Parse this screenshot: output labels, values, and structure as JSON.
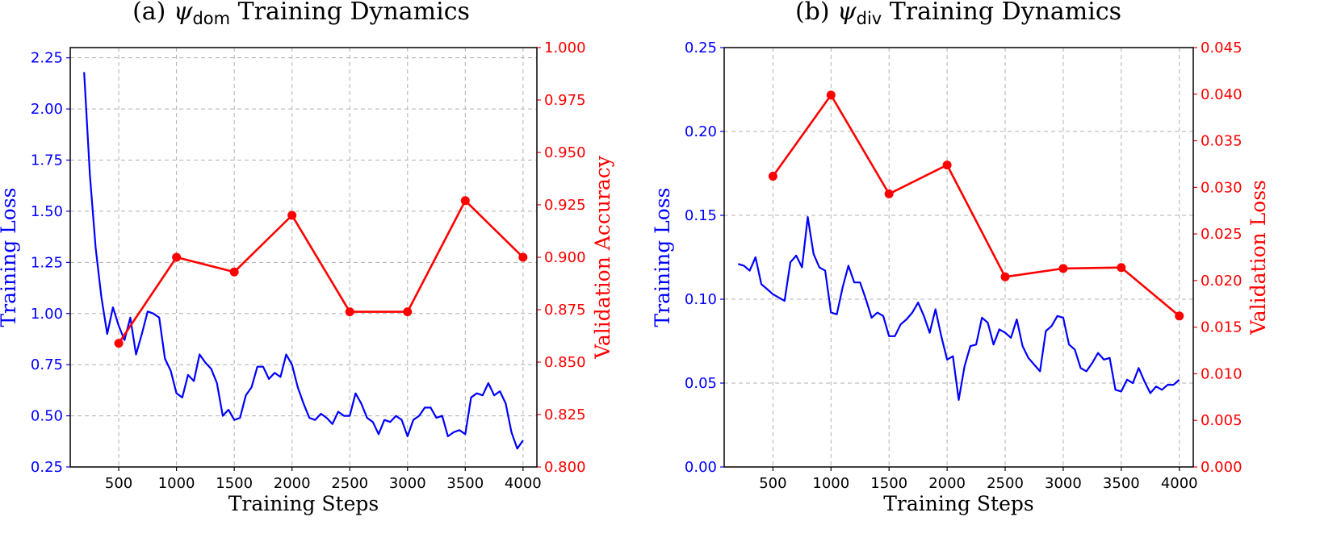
{
  "colors": {
    "train": "#0000ff",
    "val": "#ff0000",
    "grid": "#b0b0b0"
  },
  "chart_data": [
    {
      "type": "line",
      "title": "(a) ψdom Training Dynamics",
      "title_parts": {
        "prefix": "(a) ",
        "symbol": "ψ",
        "subscript": "dom",
        "suffix": " Training Dynamics"
      },
      "xlabel": "Training Steps",
      "ylabel_left": "Training Loss",
      "ylabel_right": "Validation Accuracy",
      "xlim": [
        80,
        4120
      ],
      "ylim_left": [
        0.25,
        2.3
      ],
      "ylim_right": [
        0.8,
        1.0
      ],
      "xticks": [
        "500",
        "1000",
        "1500",
        "2000",
        "2500",
        "3000",
        "3500",
        "4000"
      ],
      "yticks_left": [
        "0.25",
        "0.50",
        "0.75",
        "1.00",
        "1.25",
        "1.50",
        "1.75",
        "2.00",
        "2.25"
      ],
      "yticks_right": [
        "0.800",
        "0.825",
        "0.850",
        "0.875",
        "0.900",
        "0.925",
        "0.950",
        "0.975",
        "1.000"
      ],
      "grid": true,
      "series": [
        {
          "name": "Training Loss",
          "axis": "left",
          "x": [
            200,
            250,
            300,
            350,
            400,
            450,
            500,
            550,
            600,
            650,
            700,
            750,
            800,
            850,
            900,
            950,
            1000,
            1050,
            1100,
            1150,
            1200,
            1250,
            1300,
            1350,
            1400,
            1450,
            1500,
            1550,
            1600,
            1650,
            1700,
            1750,
            1800,
            1850,
            1900,
            1950,
            2000,
            2050,
            2100,
            2150,
            2200,
            2250,
            2300,
            2350,
            2400,
            2450,
            2500,
            2550,
            2600,
            2650,
            2700,
            2750,
            2800,
            2850,
            2900,
            2950,
            3000,
            3050,
            3100,
            3150,
            3200,
            3250,
            3300,
            3350,
            3400,
            3450,
            3500,
            3550,
            3600,
            3650,
            3700,
            3750,
            3800,
            3850,
            3900,
            3950,
            4000
          ],
          "values": [
            2.18,
            1.68,
            1.32,
            1.08,
            0.9,
            1.03,
            0.94,
            0.87,
            0.98,
            0.8,
            0.9,
            1.01,
            1.0,
            0.98,
            0.78,
            0.72,
            0.61,
            0.59,
            0.7,
            0.67,
            0.8,
            0.76,
            0.73,
            0.66,
            0.5,
            0.53,
            0.48,
            0.49,
            0.6,
            0.64,
            0.74,
            0.74,
            0.68,
            0.71,
            0.69,
            0.8,
            0.75,
            0.64,
            0.56,
            0.49,
            0.48,
            0.51,
            0.49,
            0.46,
            0.52,
            0.5,
            0.5,
            0.61,
            0.56,
            0.49,
            0.47,
            0.41,
            0.48,
            0.47,
            0.5,
            0.48,
            0.4,
            0.48,
            0.5,
            0.54,
            0.54,
            0.49,
            0.5,
            0.4,
            0.42,
            0.43,
            0.41,
            0.59,
            0.61,
            0.6,
            0.66,
            0.6,
            0.62,
            0.56,
            0.42,
            0.34,
            0.38
          ]
        },
        {
          "name": "Validation Accuracy",
          "axis": "right",
          "markers": true,
          "x": [
            500,
            1000,
            1500,
            2000,
            2500,
            3000,
            3500,
            4000
          ],
          "values": [
            0.859,
            0.9,
            0.893,
            0.92,
            0.874,
            0.874,
            0.927,
            0.9
          ]
        }
      ]
    },
    {
      "type": "line",
      "title": "(b) ψdiv Training Dynamics",
      "title_parts": {
        "prefix": "(b) ",
        "symbol": "ψ",
        "subscript": "div",
        "suffix": " Training Dynamics"
      },
      "xlabel": "Training Steps",
      "ylabel_left": "Training Loss",
      "ylabel_right": "Validation Loss",
      "xlim": [
        80,
        4120
      ],
      "ylim_left": [
        0,
        0.25
      ],
      "ylim_right": [
        0,
        0.045
      ],
      "xticks": [
        "500",
        "1000",
        "1500",
        "2000",
        "2500",
        "3000",
        "3500",
        "4000"
      ],
      "yticks_left": [
        "0.00",
        "0.05",
        "0.10",
        "0.15",
        "0.20",
        "0.25"
      ],
      "yticks_right": [
        "0.000",
        "0.005",
        "0.010",
        "0.015",
        "0.020",
        "0.025",
        "0.030",
        "0.035",
        "0.040",
        "0.045"
      ],
      "grid": true,
      "series": [
        {
          "name": "Training Loss",
          "axis": "left",
          "x": [
            200,
            250,
            300,
            350,
            400,
            450,
            500,
            550,
            600,
            650,
            700,
            750,
            800,
            850,
            900,
            950,
            1000,
            1050,
            1100,
            1150,
            1200,
            1250,
            1300,
            1350,
            1400,
            1450,
            1500,
            1550,
            1600,
            1650,
            1700,
            1750,
            1800,
            1850,
            1900,
            1950,
            2000,
            2050,
            2100,
            2150,
            2200,
            2250,
            2300,
            2350,
            2400,
            2450,
            2500,
            2550,
            2600,
            2650,
            2700,
            2750,
            2800,
            2850,
            2900,
            2950,
            3000,
            3050,
            3100,
            3150,
            3200,
            3250,
            3300,
            3350,
            3400,
            3450,
            3500,
            3550,
            3600,
            3650,
            3700,
            3750,
            3800,
            3850,
            3900,
            3950,
            4000
          ],
          "values": [
            0.121,
            0.12,
            0.117,
            0.125,
            0.109,
            0.106,
            0.103,
            0.101,
            0.099,
            0.122,
            0.126,
            0.119,
            0.149,
            0.127,
            0.119,
            0.117,
            0.092,
            0.091,
            0.107,
            0.12,
            0.11,
            0.11,
            0.1,
            0.089,
            0.092,
            0.09,
            0.078,
            0.078,
            0.085,
            0.088,
            0.092,
            0.098,
            0.09,
            0.08,
            0.094,
            0.078,
            0.064,
            0.066,
            0.04,
            0.06,
            0.072,
            0.073,
            0.089,
            0.086,
            0.073,
            0.082,
            0.08,
            0.077,
            0.088,
            0.072,
            0.065,
            0.061,
            0.057,
            0.081,
            0.084,
            0.09,
            0.089,
            0.073,
            0.07,
            0.059,
            0.057,
            0.062,
            0.068,
            0.064,
            0.065,
            0.046,
            0.045,
            0.052,
            0.05,
            0.059,
            0.051,
            0.044,
            0.048,
            0.046,
            0.049,
            0.049,
            0.052
          ]
        },
        {
          "name": "Validation Loss",
          "axis": "right",
          "markers": true,
          "x": [
            500,
            1000,
            1500,
            2000,
            2500,
            3000,
            3500,
            4000
          ],
          "values": [
            0.0312,
            0.0399,
            0.0293,
            0.0324,
            0.0204,
            0.0213,
            0.0214,
            0.0162
          ]
        }
      ]
    }
  ]
}
